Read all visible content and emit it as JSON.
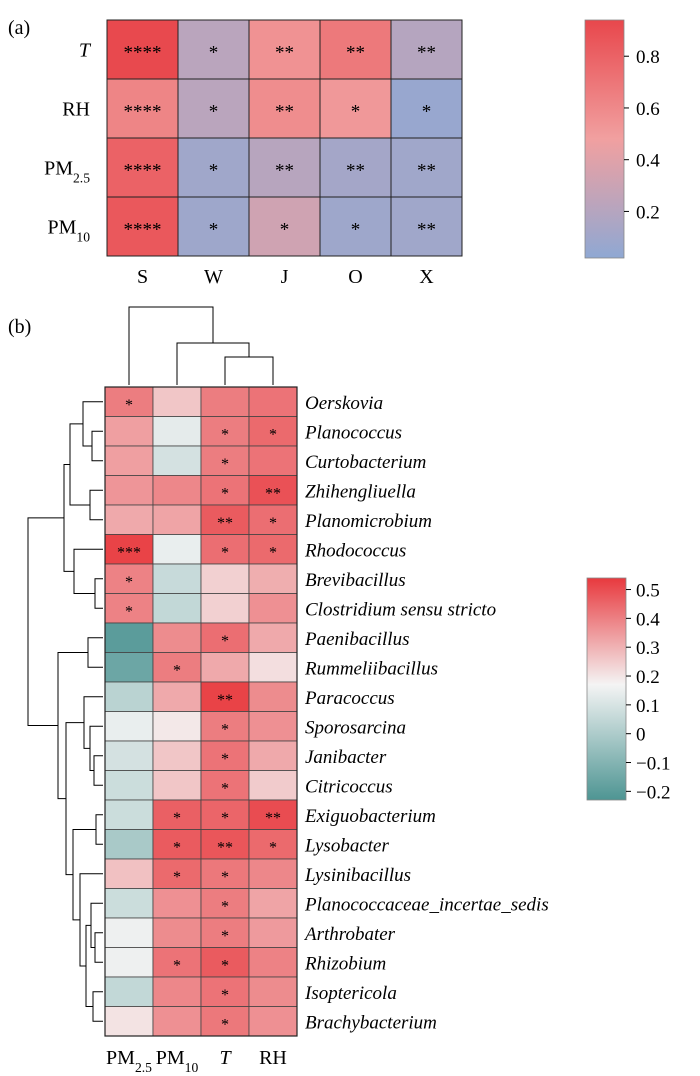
{
  "chart_data": [
    {
      "type": "heatmap",
      "panel_label": "(a)",
      "rows": [
        "T",
        "RH",
        "PM2.5",
        "PM10"
      ],
      "columns": [
        "S",
        "W",
        "J",
        "O",
        "X"
      ],
      "values": [
        [
          0.93,
          0.22,
          0.55,
          0.68,
          0.2
        ],
        [
          0.62,
          0.22,
          0.58,
          0.52,
          0.06
        ],
        [
          0.8,
          0.1,
          0.21,
          0.12,
          0.1
        ],
        [
          0.85,
          0.09,
          0.32,
          0.09,
          0.1
        ]
      ],
      "significance": [
        [
          "****",
          "*",
          "**",
          "**",
          "**"
        ],
        [
          "****",
          "*",
          "**",
          "*",
          "*"
        ],
        [
          "****",
          "*",
          "**",
          "**",
          "**"
        ],
        [
          "****",
          "*",
          "*",
          "*",
          "**"
        ]
      ],
      "colorbar": {
        "ticks": [
          0.8,
          0.6,
          0.4,
          0.2
        ],
        "range": [
          0.02,
          0.94
        ],
        "colors": [
          "#8fa8d3",
          "#f1a0a0",
          "#e8474c"
        ]
      }
    },
    {
      "type": "heatmap",
      "panel_label": "(b)",
      "columns": [
        "PM2.5",
        "PM10",
        "T",
        "RH"
      ],
      "rows": [
        "Oerskovia",
        "Planococcus",
        "Curtobacterium",
        "Zhihengliuella",
        "Planomicrobium",
        "Rhodococcus",
        "Brevibacillus",
        "Clostridium sensu stricto",
        "Paenibacillus",
        "Rummeliibacillus",
        "Paracoccus",
        "Sporosarcina",
        "Janibacter",
        "Citricoccus",
        "Exiguobacterium",
        "Lysobacter",
        "Lysinibacillus",
        "Planococcaceae_incertae_sedis",
        "Arthrobater",
        "Rhizobium",
        "Isoptericola",
        "Brachybacterium"
      ],
      "values": [
        [
          0.4,
          0.25,
          0.4,
          0.42
        ],
        [
          0.33,
          0.12,
          0.4,
          0.44
        ],
        [
          0.33,
          0.08,
          0.4,
          0.42
        ],
        [
          0.35,
          0.38,
          0.42,
          0.49
        ],
        [
          0.31,
          0.32,
          0.47,
          0.43
        ],
        [
          0.52,
          0.13,
          0.43,
          0.44
        ],
        [
          0.39,
          0.05,
          0.23,
          0.3
        ],
        [
          0.39,
          0.04,
          0.23,
          0.36
        ],
        [
          -0.2,
          0.37,
          0.43,
          0.31
        ],
        [
          -0.16,
          0.4,
          0.31,
          0.2
        ],
        [
          0.02,
          0.31,
          0.52,
          0.37
        ],
        [
          0.13,
          0.18,
          0.4,
          0.36
        ],
        [
          0.08,
          0.25,
          0.42,
          0.31
        ],
        [
          0.06,
          0.25,
          0.42,
          0.24
        ],
        [
          0.06,
          0.46,
          0.45,
          0.5
        ],
        [
          -0.02,
          0.47,
          0.48,
          0.44
        ],
        [
          0.26,
          0.44,
          0.41,
          0.38
        ],
        [
          0.06,
          0.36,
          0.4,
          0.32
        ],
        [
          0.14,
          0.37,
          0.4,
          0.34
        ],
        [
          0.14,
          0.42,
          0.47,
          0.39
        ],
        [
          0.04,
          0.38,
          0.42,
          0.37
        ],
        [
          0.19,
          0.36,
          0.41,
          0.36
        ]
      ],
      "significance": [
        [
          "*",
          "",
          "",
          ""
        ],
        [
          "",
          "",
          "*",
          "*"
        ],
        [
          "",
          "",
          "*",
          ""
        ],
        [
          "",
          "",
          "*",
          "**"
        ],
        [
          "",
          "",
          "**",
          "*"
        ],
        [
          "***",
          "",
          "*",
          "*"
        ],
        [
          "*",
          "",
          "",
          ""
        ],
        [
          "*",
          "",
          "",
          ""
        ],
        [
          "",
          "",
          "*",
          ""
        ],
        [
          "",
          "*",
          "",
          ""
        ],
        [
          "",
          "",
          "**",
          ""
        ],
        [
          "",
          "",
          "*",
          ""
        ],
        [
          "",
          "",
          "*",
          ""
        ],
        [
          "",
          "",
          "*",
          ""
        ],
        [
          "",
          "*",
          "*",
          "**"
        ],
        [
          "",
          "*",
          "**",
          "*"
        ],
        [
          "",
          "*",
          "*",
          ""
        ],
        [
          "",
          "",
          "*",
          ""
        ],
        [
          "",
          "",
          "*",
          ""
        ],
        [
          "",
          "*",
          "*",
          ""
        ],
        [
          "",
          "",
          "*",
          ""
        ],
        [
          "",
          "",
          "*",
          ""
        ]
      ],
      "colorbar": {
        "ticks": [
          0.5,
          0.4,
          0.3,
          0.2,
          0.1,
          0,
          -0.1,
          -0.2
        ],
        "tick_labels": [
          "0.5",
          "0.4",
          "0.3",
          "0.2",
          "0.1",
          "0",
          "−0.1",
          "−0.2"
        ],
        "range": [
          -0.23,
          0.54
        ],
        "colors": [
          "#4e9593",
          "#f4f4f4",
          "#e8393e"
        ]
      }
    }
  ]
}
